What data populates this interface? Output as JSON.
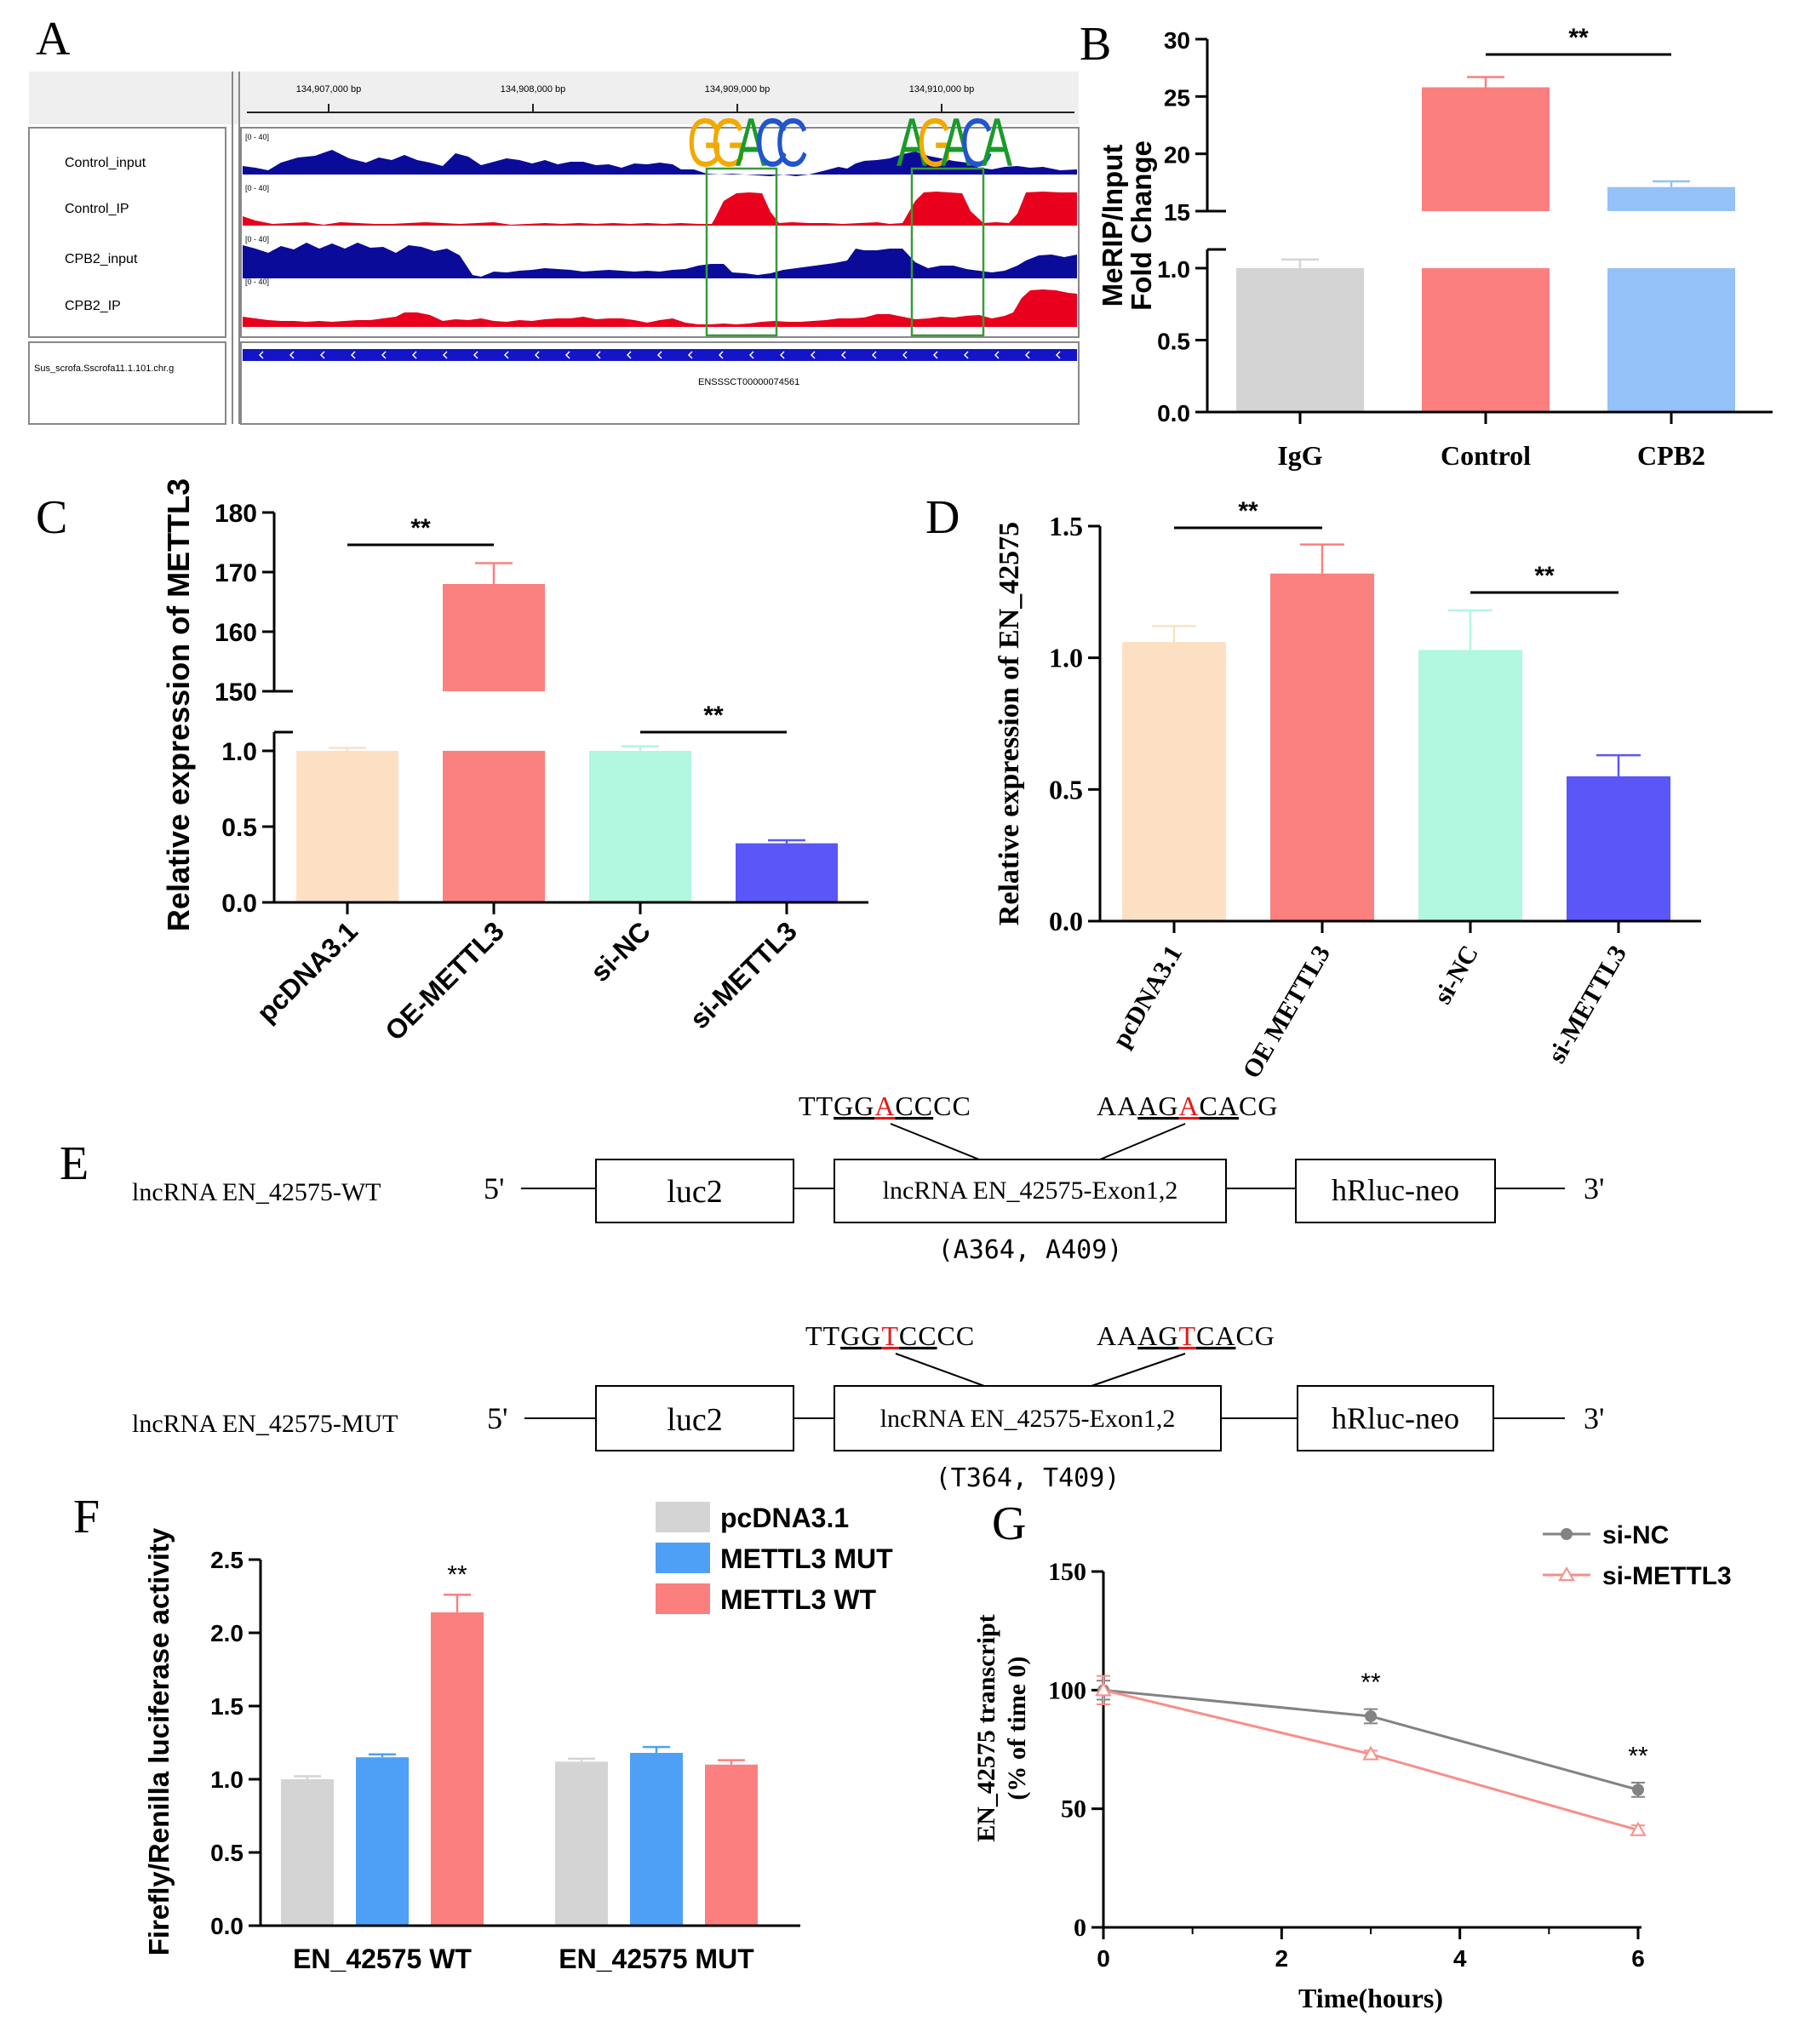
{
  "panels": [
    "A",
    "B",
    "C",
    "D",
    "E",
    "F",
    "G"
  ],
  "panel_a": {
    "coords": [
      "134,907,000 bp",
      "134,908,000 bp",
      "134,909,000 bp",
      "134,910,000 bp"
    ],
    "tracks": [
      "Control_input",
      "Control_IP",
      "CPB2_input",
      "CPB2_IP"
    ],
    "track_scale": "[0 - 40]",
    "annotation_label": "Sus_scrofa.Sscrofa11.1.101.chr.g",
    "gene_id": "ENSSSCT00000074561",
    "motif1": [
      "G",
      "G",
      "A",
      "C",
      "C"
    ],
    "motif2": [
      "A",
      "G",
      "A",
      "C",
      "A"
    ],
    "colors": {
      "input": "#0b0b9a",
      "ip": "#e8001c",
      "box": "#3a9a3a",
      "gene": "#1414c8"
    }
  },
  "panel_e": {
    "wt": {
      "name": "lncRNA EN_42575-WT",
      "five": "5'",
      "three": "3'",
      "luc": "luc2",
      "exon": "lncRNA EN_42575-Exon1,2",
      "hrluc": "hRluc-neo",
      "seq1": [
        "TT",
        "GG",
        "A",
        "CC",
        "CC"
      ],
      "seq2": [
        "AA",
        "AG",
        "A",
        "CA",
        "CG"
      ],
      "sites": "(A364, A409)"
    },
    "mut": {
      "name": "lncRNA EN_42575-MUT",
      "five": "5'",
      "three": "3'",
      "luc": "luc2",
      "exon": "lncRNA EN_42575-Exon1,2",
      "hrluc": "hRluc-neo",
      "seq1": [
        "TT",
        "GG",
        "T",
        "CC",
        "CC"
      ],
      "seq2": [
        "AA",
        "AG",
        "T",
        "CA",
        "CG"
      ],
      "sites": "(T364, T409)"
    }
  },
  "chart_data": [
    {
      "panel": "B",
      "type": "bar",
      "categories": [
        "IgG",
        "Control",
        "CPB2"
      ],
      "values": [
        1.0,
        25.8,
        17.1
      ],
      "errors": [
        0.06,
        0.9,
        0.5
      ],
      "colors": [
        "#d4d4d4",
        "#fb7f7f",
        "#94c1f7"
      ],
      "ylabel": [
        "MeRIP/Input",
        "Fold Change"
      ],
      "ylim_lower": [
        0,
        1.0
      ],
      "ylim_upper": [
        15,
        30
      ],
      "yticks_lower": [
        "0.0",
        "0.5",
        "1.0"
      ],
      "yticks_upper": [
        "15",
        "20",
        "25",
        "30"
      ],
      "significance": [
        {
          "from": "Control",
          "to": "CPB2",
          "label": "**"
        }
      ]
    },
    {
      "panel": "C",
      "type": "bar",
      "categories": [
        "pcDNA3.1",
        "OE-METTL3",
        "si-NC",
        "si-METTL3"
      ],
      "values": [
        1.0,
        168,
        1.0,
        0.39
      ],
      "errors": [
        0.02,
        3.5,
        0.03,
        0.02
      ],
      "colors": [
        "#fde0c3",
        "#fb8080",
        "#b2f7e0",
        "#5a56f8"
      ],
      "ylabel": "Relative expression of METTL3",
      "ylim_lower": [
        0,
        1.0
      ],
      "ylim_upper": [
        150,
        180
      ],
      "yticks_lower": [
        "0.0",
        "0.5",
        "1.0"
      ],
      "yticks_upper": [
        "150",
        "160",
        "170",
        "180"
      ],
      "significance": [
        {
          "from": "pcDNA3.1",
          "to": "OE-METTL3",
          "label": "**"
        },
        {
          "from": "si-NC",
          "to": "si-METTL3",
          "label": "**"
        }
      ]
    },
    {
      "panel": "D",
      "type": "bar",
      "categories": [
        "pcDNA3.1",
        "OE METTL3",
        "si-NC",
        "si-METTL3"
      ],
      "values": [
        1.06,
        1.32,
        1.03,
        0.55
      ],
      "errors": [
        0.06,
        0.11,
        0.15,
        0.08
      ],
      "colors": [
        "#fde0c3",
        "#fb8080",
        "#b2f7e0",
        "#5a56f8"
      ],
      "ylabel": "Relative expression of EN_42575",
      "ylim": [
        0,
        1.5
      ],
      "yticks": [
        "0.0",
        "0.5",
        "1.0",
        "1.5"
      ],
      "significance": [
        {
          "from": "pcDNA3.1",
          "to": "OE METTL3",
          "label": "**"
        },
        {
          "from": "si-NC",
          "to": "si-METTL3",
          "label": "**"
        }
      ]
    },
    {
      "panel": "F",
      "type": "bar",
      "categories": [
        "EN_42575 WT",
        "EN_42575 MUT"
      ],
      "series": [
        {
          "name": "pcDNA3.1",
          "values": [
            1.0,
            1.12
          ],
          "errors": [
            0.02,
            0.02
          ],
          "color": "#d4d4d4"
        },
        {
          "name": "METTL3 MUT",
          "values": [
            1.15,
            1.18
          ],
          "errors": [
            0.02,
            0.04
          ],
          "color": "#4ea0f7"
        },
        {
          "name": "METTL3 WT",
          "values": [
            2.14,
            1.1
          ],
          "errors": [
            0.12,
            0.03
          ],
          "color": "#fb7f7f"
        }
      ],
      "ylabel": "Firefly/Renilla luciferase activity",
      "ylim": [
        0,
        2.5
      ],
      "yticks": [
        "0.0",
        "0.5",
        "1.0",
        "1.5",
        "2.0",
        "2.5"
      ],
      "annotations": [
        {
          "category": "EN_42575 WT",
          "series": "METTL3 WT",
          "label": "**"
        }
      ]
    },
    {
      "panel": "G",
      "type": "line",
      "x": [
        0,
        3,
        6
      ],
      "series": [
        {
          "name": "si-NC",
          "values": [
            100,
            89,
            58
          ],
          "errors": [
            4,
            3,
            3
          ],
          "color": "#838383",
          "marker": "circle"
        },
        {
          "name": "si-METTL3",
          "values": [
            100,
            73,
            41
          ],
          "errors": [
            6,
            1.5,
            2
          ],
          "color": "#f78f88",
          "marker": "triangle"
        }
      ],
      "xlabel": "Time(hours)",
      "ylabel": [
        "EN_42575 transcript",
        "(% of time 0)"
      ],
      "xlim": [
        0,
        6
      ],
      "ylim": [
        0,
        150
      ],
      "xticks": [
        "0",
        "2",
        "4",
        "6"
      ],
      "yticks": [
        "0",
        "50",
        "100",
        "150"
      ],
      "annotations": [
        {
          "x": 3,
          "label": "**"
        },
        {
          "x": 6,
          "label": "**"
        }
      ]
    }
  ]
}
